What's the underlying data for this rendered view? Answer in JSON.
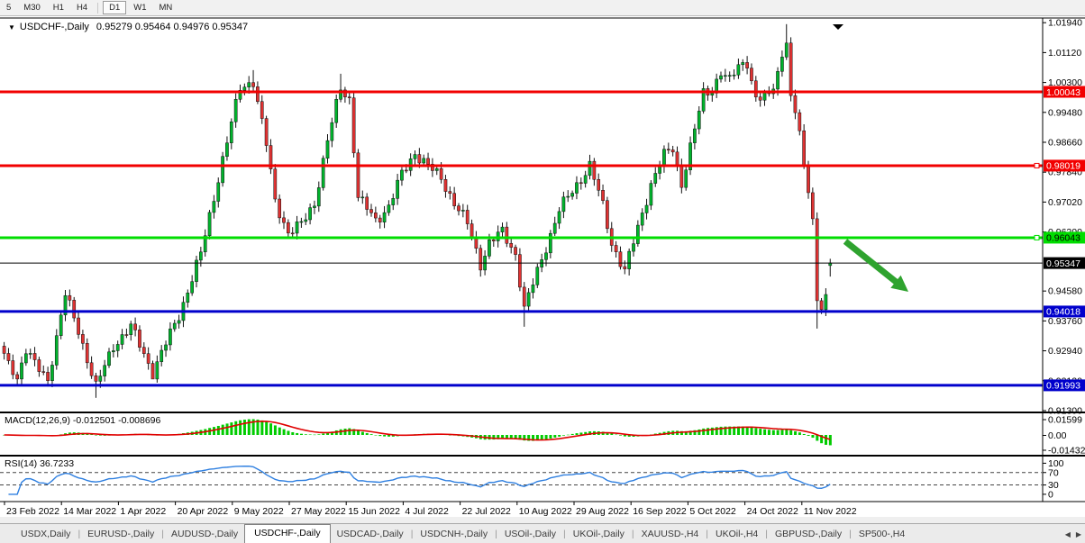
{
  "toolbar": {
    "timeframes": [
      "5",
      "M30",
      "H1",
      "H4",
      "D1",
      "W1",
      "MN"
    ],
    "active": "D1"
  },
  "chart": {
    "title_symbol": "USDCHF-,Daily",
    "title_ohlc": "0.95279 0.95464 0.94976 0.95347"
  },
  "icons": {
    "dropdown": "▼",
    "chart_shift": "▼",
    "tab_scroll_left": "◀",
    "tab_scroll_right": "▶"
  },
  "chart_data": {
    "type": "candlestick",
    "symbol": "USDCHF-",
    "timeframe": "Daily",
    "last_candle": {
      "open": 0.95279,
      "high": 0.95464,
      "low": 0.94976,
      "close": 0.95347
    },
    "bull_color": "#00B32C",
    "bear_color": "#E03232",
    "close_waypoints": [
      [
        0,
        0.9285
      ],
      [
        3,
        0.9222
      ],
      [
        5,
        0.9298
      ],
      [
        7,
        0.9256
      ],
      [
        10,
        0.9215
      ],
      [
        14,
        0.9448
      ],
      [
        17,
        0.935
      ],
      [
        21,
        0.9195
      ],
      [
        25,
        0.9308
      ],
      [
        29,
        0.936
      ],
      [
        34,
        0.9235
      ],
      [
        40,
        0.9392
      ],
      [
        45,
        0.956
      ],
      [
        50,
        0.982
      ],
      [
        54,
        1.0015
      ],
      [
        57,
        1.0035
      ],
      [
        60,
        0.986
      ],
      [
        62,
        0.9705
      ],
      [
        65,
        0.9618
      ],
      [
        68,
        0.964
      ],
      [
        71,
        0.97
      ],
      [
        74,
        0.987
      ],
      [
        77,
        1.0015
      ],
      [
        79,
        0.9985
      ],
      [
        81,
        0.9715
      ],
      [
        85,
        0.9652
      ],
      [
        88,
        0.969
      ],
      [
        91,
        0.9778
      ],
      [
        94,
        0.9838
      ],
      [
        97,
        0.98
      ],
      [
        100,
        0.9768
      ],
      [
        103,
        0.97
      ],
      [
        106,
        0.9642
      ],
      [
        109,
        0.9532
      ],
      [
        111,
        0.959
      ],
      [
        114,
        0.962
      ],
      [
        117,
        0.956
      ],
      [
        119,
        0.9408
      ],
      [
        121,
        0.9478
      ],
      [
        124,
        0.958
      ],
      [
        127,
        0.968
      ],
      [
        131,
        0.975
      ],
      [
        134,
        0.9802
      ],
      [
        137,
        0.9692
      ],
      [
        139,
        0.959
      ],
      [
        142,
        0.9512
      ],
      [
        145,
        0.9632
      ],
      [
        148,
        0.9752
      ],
      [
        151,
        0.983
      ],
      [
        153,
        0.985
      ],
      [
        155,
        0.9752
      ],
      [
        158,
        0.99
      ],
      [
        160,
        1.0
      ],
      [
        162,
        1.0012
      ],
      [
        164,
        1.0058
      ],
      [
        166,
        1.0032
      ],
      [
        168,
        1.0078
      ],
      [
        170,
        1.0088
      ],
      [
        172,
        0.9982
      ],
      [
        175,
        0.9992
      ],
      [
        177,
        1.006
      ],
      [
        179,
        1.015
      ],
      [
        180,
        0.998
      ],
      [
        182,
        0.99
      ],
      [
        183,
        0.98
      ],
      [
        185,
        0.966
      ],
      [
        186,
        0.943
      ],
      [
        187,
        0.9408
      ],
      [
        188,
        0.9448
      ],
      [
        189,
        0.95347
      ]
    ],
    "wick_overrides": {
      "high": {
        "57": 1.0064,
        "77": 1.0054,
        "179": 1.019
      },
      "low": {
        "21": 0.9165,
        "34": 0.9222,
        "119": 0.936,
        "186": 0.9355
      }
    },
    "levels": [
      {
        "price": 1.00043,
        "label": "1.00043",
        "color": "#F20000",
        "text": "#ffffff",
        "width": 3,
        "handle": false
      },
      {
        "price": 0.98019,
        "label": "0.98019",
        "color": "#F20000",
        "text": "#ffffff",
        "width": 3,
        "handle": true
      },
      {
        "price": 0.96043,
        "label": "0.96043",
        "color": "#00DD00",
        "text": "#000000",
        "width": 3,
        "handle": true
      },
      {
        "price": 0.95347,
        "label": "0.95347",
        "color": "#000000",
        "text": "#ffffff",
        "width": 1,
        "handle": false
      },
      {
        "price": 0.94018,
        "label": "0.94018",
        "color": "#0000CC",
        "text": "#ffffff",
        "width": 3,
        "handle": false
      },
      {
        "price": 0.91993,
        "label": "0.91993",
        "color": "#0000CC",
        "text": "#ffffff",
        "width": 3,
        "handle": false
      }
    ],
    "price_axis_ticks": [
      "1.01940",
      "1.01120",
      "1.00300",
      "0.99480",
      "0.98660",
      "0.97840",
      "0.97020",
      "0.96200",
      "0.94580",
      "0.93760",
      "0.92940",
      "0.92120",
      "0.91300"
    ],
    "x_tick_labels": [
      "23 Feb 2022",
      "14 Mar 2022",
      "1 Apr 2022",
      "20 Apr 2022",
      "9 May 2022",
      "27 May 2022",
      "15 Jun 2022",
      "4 Jul 2022",
      "22 Jul 2022",
      "10 Aug 2022",
      "29 Aug 2022",
      "16 Sep 2022",
      "5 Oct 2022",
      "24 Oct 2022",
      "11 Nov 2022"
    ],
    "indicators": {
      "macd": {
        "label": "MACD(12,26,9) -0.012501 -0.008696",
        "fast": 12,
        "slow": 26,
        "signal": 9,
        "value": -0.012501,
        "signal_value": -0.008696,
        "axis": [
          "0.01599",
          "0.00",
          "-0.01432"
        ],
        "hist_color": "#00CC00",
        "signal_color": "#E00000"
      },
      "rsi": {
        "label": "RSI(14) 36.7233",
        "period": 14,
        "value": 36.7233,
        "axis": [
          "100",
          "70",
          "30",
          "0"
        ],
        "levels": [
          70,
          30
        ],
        "line_color": "#2E7FE0"
      }
    },
    "annotations": [
      {
        "type": "arrow",
        "color": "#2FA32F",
        "from": [
          938,
          268
        ],
        "to": [
          1008,
          324
        ],
        "meaning": "down-trend-arrow"
      }
    ]
  },
  "tabs": {
    "items": [
      {
        "label": "USDX,Daily"
      },
      {
        "label": "EURUSD-,Daily"
      },
      {
        "label": "AUDUSD-,Daily"
      },
      {
        "label": "USDCHF-,Daily",
        "active": true
      },
      {
        "label": "USDCAD-,Daily"
      },
      {
        "label": "USDCNH-,Daily"
      },
      {
        "label": "USOil-,Daily"
      },
      {
        "label": "UKOil-,Daily"
      },
      {
        "label": "XAUUSD-,H4"
      },
      {
        "label": "UKOil-,H4"
      },
      {
        "label": "GBPUSD-,Daily"
      },
      {
        "label": "SP500-,H4"
      }
    ]
  }
}
